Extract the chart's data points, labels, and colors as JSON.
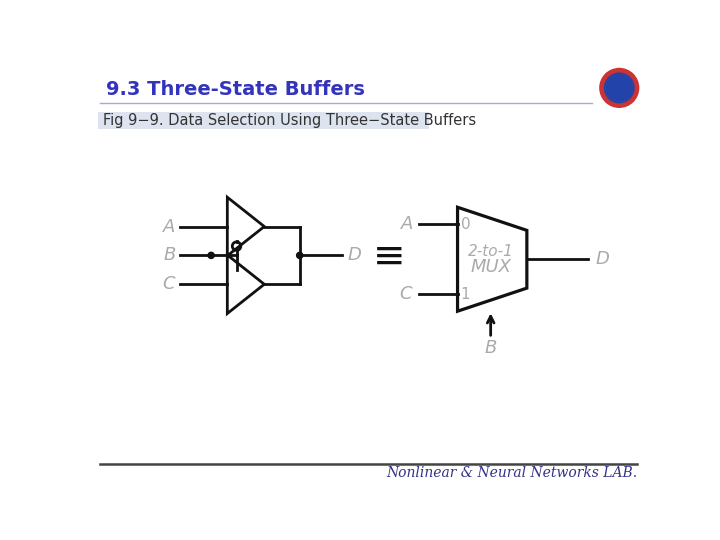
{
  "title": "9.3 Three-State Buffers",
  "subtitle": "Fig 9−9. Data Selection Using Three−State Buffers",
  "footer": "Nonlinear & Neural Networks LAB.",
  "bg_color": "#ffffff",
  "title_color": "#3333bb",
  "label_color": "#aaaaaa",
  "line_color": "#111111",
  "subtitle_bg": "#dde4f0",
  "subtitle_fontsize": 10.5,
  "title_fontsize": 14
}
